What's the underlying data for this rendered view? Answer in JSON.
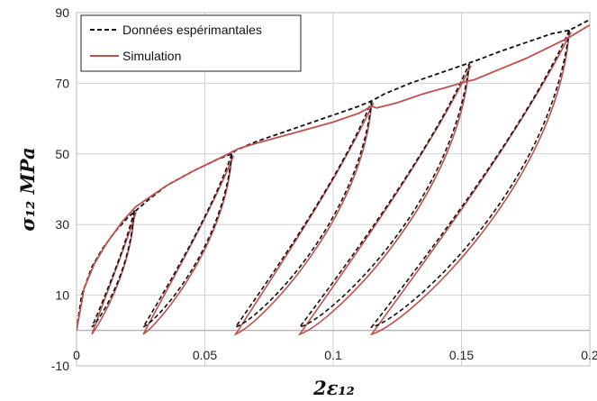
{
  "chart_data": {
    "type": "line",
    "xlabel": "2ε12",
    "ylabel": "σ12 MPa",
    "xlim": [
      0,
      0.2
    ],
    "ylim": [
      -10,
      90
    ],
    "xticks": [
      "0",
      "0.05",
      "0.1",
      "0.15",
      "0.2"
    ],
    "yticks": [
      "-10",
      "10",
      "30",
      "50",
      "70",
      "90"
    ],
    "grid": true,
    "legend_position": "top-left",
    "series": [
      {
        "name": "Données espérimantales",
        "style": "dashed",
        "color": "#111111",
        "x": [
          0,
          0.002,
          0.006,
          0.01,
          0.015,
          0.02,
          0.024,
          0.028,
          0.035,
          0.045,
          0.055,
          0.0605,
          0.062,
          0.07,
          0.08,
          0.09,
          0.1,
          0.11,
          0.115,
          0.12,
          0.13,
          0.14,
          0.15,
          0.154,
          0.156,
          0.165,
          0.175,
          0.185,
          0.192,
          0.2
        ],
        "y": [
          0,
          10,
          18,
          23,
          28,
          32,
          34.5,
          37,
          41,
          45,
          48.5,
          50,
          51,
          53.5,
          56,
          58.5,
          61,
          63.5,
          65,
          67,
          70,
          72.5,
          75,
          76,
          76.5,
          79,
          81.5,
          84,
          85,
          88
        ]
      },
      {
        "name": "Simulation",
        "style": "solid",
        "color": "#c0504d",
        "x": [
          0,
          0.003,
          0.007,
          0.012,
          0.018,
          0.023,
          0.028,
          0.035,
          0.045,
          0.055,
          0.0605,
          0.063,
          0.07,
          0.08,
          0.09,
          0.1,
          0.11,
          0.115,
          0.117,
          0.125,
          0.135,
          0.145,
          0.152,
          0.155,
          0.165,
          0.175,
          0.185,
          0.192,
          0.2
        ],
        "y": [
          0,
          12,
          19,
          25,
          31,
          35,
          37.5,
          41,
          45,
          48.5,
          50.5,
          51.5,
          53,
          55,
          57,
          59,
          61.5,
          63.5,
          63,
          64.5,
          67,
          69,
          70.5,
          71,
          74,
          77,
          80.5,
          83,
          86.5
        ]
      }
    ],
    "unloading_reloading_cycles": [
      {
        "peak": [
          0.0225,
          34
        ],
        "min": [
          0.006,
          1
        ]
      },
      {
        "peak": [
          0.0605,
          50
        ],
        "min": [
          0.026,
          1
        ]
      },
      {
        "peak": [
          0.115,
          65
        ],
        "min": [
          0.062,
          1
        ]
      },
      {
        "peak": [
          0.153,
          75.5
        ],
        "min": [
          0.087,
          1
        ]
      },
      {
        "peak": [
          0.192,
          85
        ],
        "min": [
          0.115,
          1
        ]
      }
    ]
  },
  "legend": {
    "exp_label": "Données espérimantales",
    "sim_label": "Simulation"
  }
}
